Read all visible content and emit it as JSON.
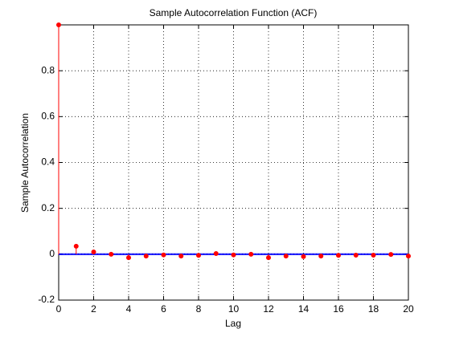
{
  "chart_data": {
    "type": "stem",
    "title": "Sample Autocorrelation Function (ACF)",
    "x_label": "Lag",
    "y_label": "Sample Autocorrelation",
    "x": [
      0,
      1,
      2,
      3,
      4,
      5,
      6,
      7,
      8,
      9,
      10,
      11,
      12,
      13,
      14,
      15,
      16,
      17,
      18,
      19,
      20
    ],
    "series": [
      {
        "name": "ACF",
        "color": "#ff0000",
        "values": [
          1,
          0.035,
          0.01,
          0.0,
          -0.015,
          -0.008,
          -0.003,
          -0.008,
          -0.005,
          0.003,
          -0.003,
          0.0,
          -0.015,
          -0.008,
          -0.01,
          -0.008,
          -0.005,
          -0.004,
          -0.004,
          -0.001,
          -0.008
        ]
      }
    ],
    "bounds": [
      0.002,
      -0.002
    ],
    "bounds_color": "#0000ff",
    "xlim": [
      0,
      20
    ],
    "xticks": [
      0,
      2,
      4,
      6,
      8,
      10,
      12,
      14,
      16,
      18,
      20
    ],
    "ylim": [
      -0.2,
      1
    ],
    "yticks": [
      -0.2,
      0,
      0.2,
      0.4,
      0.6,
      0.8
    ],
    "grid": true
  }
}
